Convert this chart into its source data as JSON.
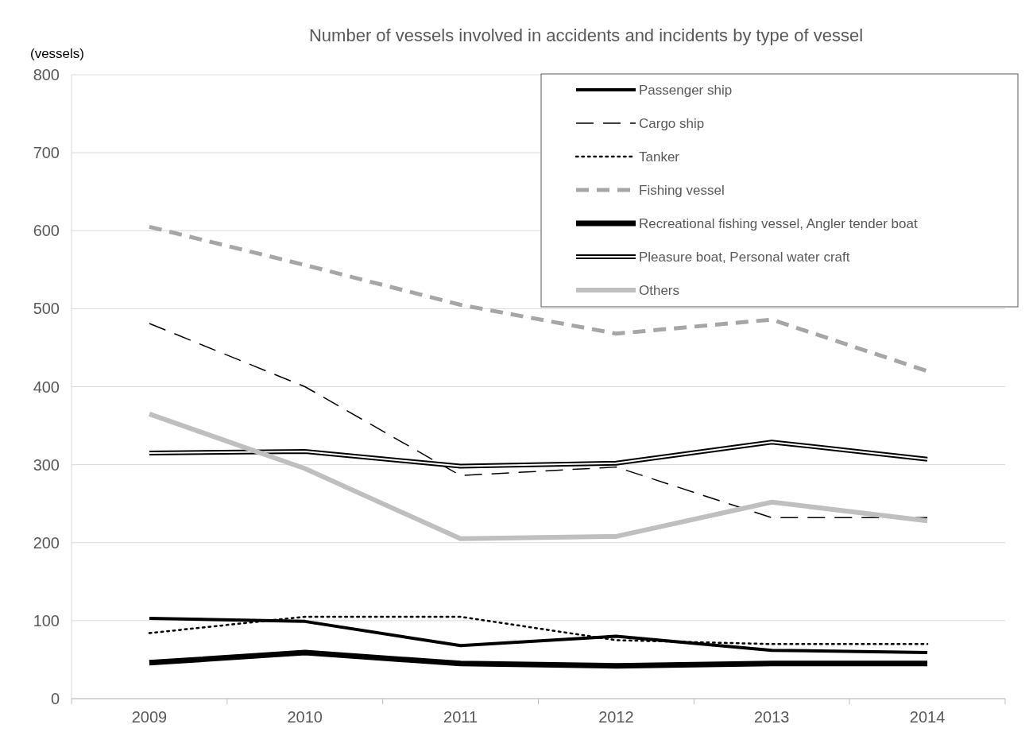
{
  "chart_data": {
    "type": "line",
    "title": "Number of vessels involved in accidents and incidents by type of vessel",
    "ylabel": "(vessels)",
    "categories": [
      "2009",
      "2010",
      "2011",
      "2012",
      "2013",
      "2014"
    ],
    "ylim": [
      0,
      800
    ],
    "yticks": [
      0,
      100,
      200,
      300,
      400,
      500,
      600,
      700,
      800
    ],
    "grid": "y",
    "legend": "top right",
    "marker": "none",
    "series": [
      {
        "name": "Passenger ship",
        "color": "#000000",
        "line_style": "solid",
        "values": [
          103,
          99,
          68,
          80,
          62,
          59
        ]
      },
      {
        "name": "Cargo ship",
        "color": "#000000",
        "line_style": "dashed",
        "values": [
          481,
          400,
          286,
          297,
          232,
          232
        ]
      },
      {
        "name": "Tanker",
        "color": "#000000",
        "line_style": "dotted",
        "values": [
          84,
          105,
          105,
          75,
          70,
          70
        ]
      },
      {
        "name": "Fishing vessel",
        "color": "#a6a6a6",
        "line_style": "dashed",
        "values": [
          605,
          556,
          505,
          468,
          486,
          420
        ]
      },
      {
        "name": "Recreational fishing vessel, Angler tender boat",
        "color": "#000000",
        "line_style": "solid",
        "values": [
          46,
          59,
          45,
          42,
          45,
          45
        ]
      },
      {
        "name": "Pleasure boat, Personal water craft",
        "color": "#000000",
        "line_style": "solid",
        "values": [
          315,
          317,
          298,
          302,
          329,
          307
        ]
      },
      {
        "name": "Others",
        "color": "#bfbfbf",
        "line_style": "solid",
        "values": [
          365,
          295,
          205,
          208,
          252,
          228
        ]
      }
    ]
  }
}
